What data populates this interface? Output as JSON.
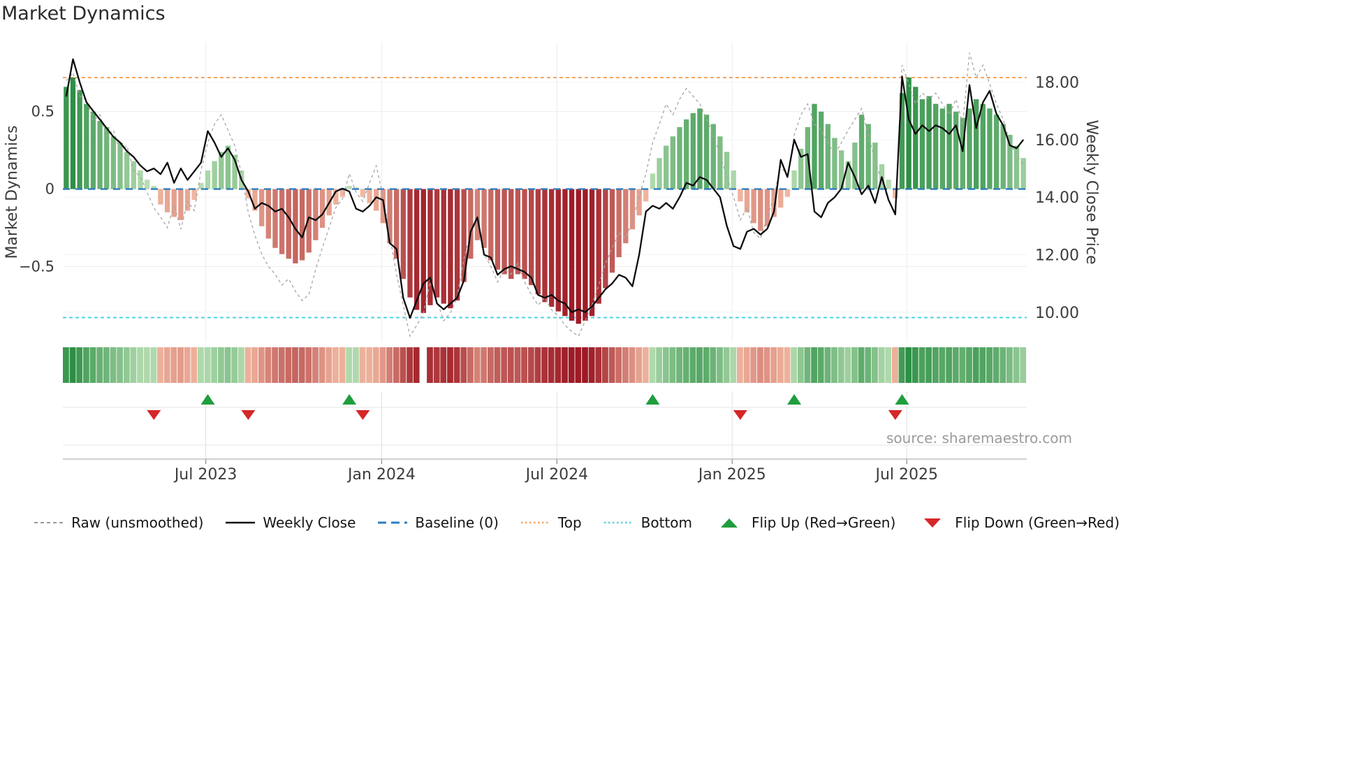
{
  "page": {
    "title": "Market Dynamics",
    "source_note": "source: sharemaestro.com"
  },
  "colors": {
    "bar_green_dark": "#12802f",
    "bar_green_light": "#c4e5bd",
    "bar_red_dark": "#9e1b26",
    "bar_red_light": "#f8c4aa",
    "raw_line": "#a6a6a6",
    "close_line": "#0d0d0d",
    "baseline": "#2e7dbd",
    "top_line": "#f5a55e",
    "bottom_line": "#4dd2e2",
    "flip_up": "#1f9e3d",
    "flip_down": "#d62728"
  },
  "legend": {
    "items": [
      {
        "id": "raw",
        "label": "Raw (unsmoothed)",
        "swatch": "dashed-line",
        "color": "#999999"
      },
      {
        "id": "weekly-close",
        "label": "Weekly Close",
        "swatch": "solid-line",
        "color": "#111111"
      },
      {
        "id": "baseline",
        "label": "Baseline (0)",
        "swatch": "long-dash-line",
        "color": "#2e7dbd"
      },
      {
        "id": "top",
        "label": "Top",
        "swatch": "dotted-line",
        "color": "#f5a55e"
      },
      {
        "id": "bottom",
        "label": "Bottom",
        "swatch": "dotted-line",
        "color": "#4dd2e2"
      },
      {
        "id": "flip-up",
        "label": "Flip Up (Red→Green)",
        "swatch": "triangle-up",
        "color": "#1f9e3d"
      },
      {
        "id": "flip-down",
        "label": "Flip Down (Green→Red)",
        "swatch": "triangle-down",
        "color": "#d62728"
      }
    ]
  },
  "chart_data": {
    "type": "combo (weekly bars + heatmap strip + flip markers + dual-axis lines)",
    "title": "Market Dynamics",
    "left_axis": {
      "label": "Market Dynamics",
      "range": [
        -0.99,
        0.95
      ],
      "ticks": [
        {
          "v": 0.5,
          "label": "0.5"
        },
        {
          "v": 0.0,
          "label": "0"
        },
        {
          "v": -0.5,
          "label": "−0.5"
        }
      ]
    },
    "right_axis": {
      "label": "Weekly Close Price",
      "range": [
        8.95,
        19.4
      ],
      "ticks": [
        {
          "v": 18,
          "label": "18.00"
        },
        {
          "v": 16,
          "label": "16.00"
        },
        {
          "v": 14,
          "label": "14.00"
        },
        {
          "v": 12,
          "label": "12.00"
        },
        {
          "v": 10,
          "label": "10.00"
        }
      ]
    },
    "x_ticks": [
      {
        "label": "Jul 2023",
        "week": 20.7
      },
      {
        "label": "Jan 2024",
        "week": 46.8
      },
      {
        "label": "Jul 2024",
        "week": 72.8
      },
      {
        "label": "Jan 2025",
        "week": 98.8
      },
      {
        "label": "Jul 2025",
        "week": 124.7
      }
    ],
    "baseline": 0,
    "top": 0.72,
    "bottom": -0.83,
    "heatmap_gap_index": 53,
    "flip_up_weeks": [
      21,
      42,
      87,
      108,
      124
    ],
    "flip_down_weeks": [
      13,
      27,
      44,
      100,
      123
    ],
    "bars": [
      0.66,
      0.72,
      0.64,
      0.55,
      0.5,
      0.44,
      0.4,
      0.34,
      0.3,
      0.24,
      0.18,
      0.12,
      0.06,
      0.02,
      -0.1,
      -0.15,
      -0.18,
      -0.2,
      -0.14,
      -0.07,
      0.04,
      0.12,
      0.18,
      0.24,
      0.28,
      0.22,
      0.12,
      -0.06,
      -0.14,
      -0.24,
      -0.32,
      -0.38,
      -0.42,
      -0.45,
      -0.48,
      -0.46,
      -0.41,
      -0.33,
      -0.25,
      -0.17,
      -0.1,
      -0.05,
      0.02,
      0.01,
      -0.05,
      -0.09,
      -0.14,
      -0.22,
      -0.35,
      -0.45,
      -0.58,
      -0.7,
      -0.78,
      -0.8,
      -0.75,
      -0.7,
      -0.74,
      -0.77,
      -0.72,
      -0.6,
      -0.45,
      -0.33,
      -0.38,
      -0.46,
      -0.52,
      -0.55,
      -0.58,
      -0.55,
      -0.58,
      -0.62,
      -0.68,
      -0.73,
      -0.76,
      -0.79,
      -0.82,
      -0.85,
      -0.87,
      -0.85,
      -0.82,
      -0.74,
      -0.64,
      -0.54,
      -0.44,
      -0.35,
      -0.26,
      -0.17,
      -0.08,
      0.1,
      0.2,
      0.28,
      0.34,
      0.4,
      0.45,
      0.49,
      0.52,
      0.48,
      0.42,
      0.34,
      0.24,
      0.12,
      -0.08,
      -0.15,
      -0.22,
      -0.27,
      -0.24,
      -0.18,
      -0.12,
      -0.05,
      0.12,
      0.26,
      0.4,
      0.55,
      0.5,
      0.42,
      0.33,
      0.25,
      0.18,
      0.3,
      0.48,
      0.42,
      0.3,
      0.16,
      0.06,
      -0.06,
      0.62,
      0.72,
      0.66,
      0.58,
      0.6,
      0.55,
      0.52,
      0.55,
      0.5,
      0.46,
      0.52,
      0.58,
      0.55,
      0.52,
      0.48,
      0.42,
      0.35,
      0.28,
      0.2
    ],
    "raw": [
      0.7,
      0.75,
      0.6,
      0.58,
      0.44,
      0.48,
      0.34,
      0.38,
      0.24,
      0.28,
      0.12,
      0.08,
      -0.02,
      -0.12,
      -0.18,
      -0.25,
      -0.1,
      -0.26,
      -0.08,
      -0.14,
      0.12,
      0.3,
      0.42,
      0.48,
      0.38,
      0.28,
      0.1,
      -0.15,
      -0.3,
      -0.42,
      -0.5,
      -0.55,
      -0.62,
      -0.58,
      -0.66,
      -0.72,
      -0.68,
      -0.52,
      -0.38,
      -0.25,
      -0.12,
      -0.06,
      0.1,
      -0.02,
      -0.08,
      0.04,
      0.15,
      -0.05,
      -0.3,
      -0.55,
      -0.75,
      -0.95,
      -0.88,
      -0.8,
      -0.6,
      -0.72,
      -0.85,
      -0.8,
      -0.7,
      -0.45,
      -0.28,
      -0.2,
      -0.42,
      -0.5,
      -0.6,
      -0.52,
      -0.55,
      -0.48,
      -0.6,
      -0.68,
      -0.75,
      -0.7,
      -0.78,
      -0.82,
      -0.88,
      -0.92,
      -0.95,
      -0.85,
      -0.75,
      -0.62,
      -0.48,
      -0.38,
      -0.28,
      -0.32,
      -0.2,
      -0.05,
      0.1,
      0.3,
      0.42,
      0.55,
      0.48,
      0.58,
      0.65,
      0.6,
      0.55,
      0.45,
      0.35,
      0.22,
      0.08,
      -0.05,
      -0.2,
      -0.12,
      -0.28,
      -0.32,
      -0.18,
      -0.05,
      0.15,
      0.08,
      0.35,
      0.48,
      0.55,
      0.42,
      0.38,
      0.3,
      0.22,
      0.3,
      0.38,
      0.45,
      0.52,
      0.35,
      0.18,
      0.05,
      -0.08,
      -0.15,
      0.8,
      0.68,
      0.55,
      0.62,
      0.58,
      0.62,
      0.55,
      0.48,
      0.58,
      0.42,
      0.88,
      0.72,
      0.8,
      0.68,
      0.55,
      0.45,
      0.3,
      0.22,
      0.15
    ],
    "weekly_close": [
      17.5,
      18.8,
      18.0,
      17.3,
      17.0,
      16.7,
      16.4,
      16.1,
      15.9,
      15.6,
      15.4,
      15.1,
      14.9,
      15.0,
      14.8,
      15.2,
      14.5,
      15.0,
      14.6,
      14.9,
      15.2,
      16.3,
      15.9,
      15.4,
      15.7,
      15.3,
      14.6,
      14.2,
      13.6,
      13.8,
      13.7,
      13.5,
      13.6,
      13.3,
      12.9,
      12.6,
      13.3,
      13.2,
      13.4,
      13.8,
      14.2,
      14.3,
      14.2,
      13.6,
      13.5,
      13.7,
      14.0,
      13.9,
      12.4,
      12.2,
      10.5,
      9.8,
      10.4,
      11.0,
      11.2,
      10.3,
      10.1,
      10.3,
      10.5,
      11.1,
      12.8,
      13.3,
      12.0,
      11.9,
      11.3,
      11.5,
      11.6,
      11.5,
      11.4,
      11.2,
      10.6,
      10.5,
      10.6,
      10.4,
      10.3,
      10.0,
      10.1,
      10.0,
      10.2,
      10.5,
      10.8,
      11.0,
      11.3,
      11.2,
      10.9,
      12.0,
      13.5,
      13.7,
      13.6,
      13.8,
      13.6,
      14.0,
      14.5,
      14.4,
      14.7,
      14.6,
      14.3,
      14.0,
      13.0,
      12.3,
      12.2,
      12.8,
      12.9,
      12.7,
      12.9,
      13.5,
      15.3,
      14.7,
      16.0,
      15.4,
      15.5,
      13.5,
      13.3,
      13.8,
      14.0,
      14.3,
      15.2,
      14.7,
      14.1,
      14.4,
      13.8,
      14.7,
      13.9,
      13.4,
      18.2,
      16.7,
      16.2,
      16.5,
      16.3,
      16.5,
      16.4,
      16.2,
      16.5,
      15.6,
      17.9,
      16.4,
      17.3,
      17.7,
      16.9,
      16.5,
      15.8,
      15.7,
      16.0
    ]
  }
}
